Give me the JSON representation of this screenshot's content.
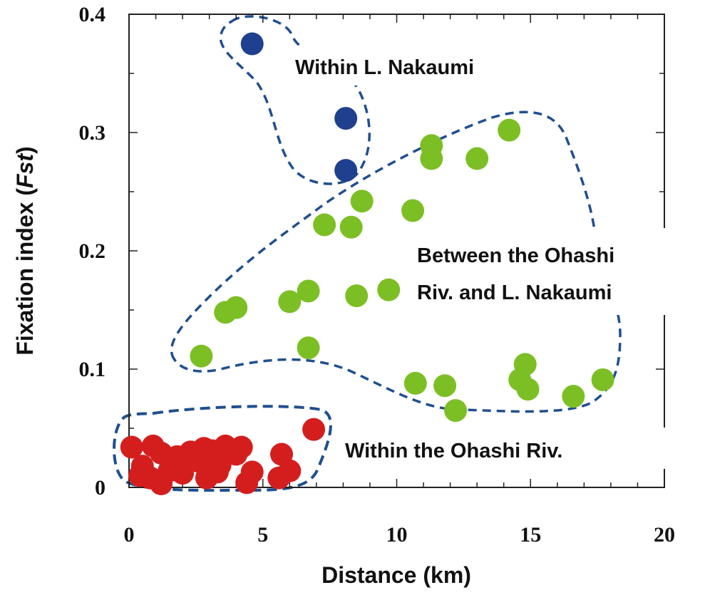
{
  "chart_data": {
    "type": "scatter",
    "xlabel": "Distance (km)",
    "ylabel_main": "Fixation index (",
    "ylabel_italic": "Fst",
    "ylabel_end": ")",
    "xlim": [
      0,
      20
    ],
    "ylim": [
      0,
      0.4
    ],
    "x_ticks": [
      "0",
      "5",
      "10",
      "15",
      "20"
    ],
    "y_ticks": [
      "0",
      "0.1",
      "0.2",
      "0.3",
      "0.4"
    ],
    "grid": false,
    "series": [
      {
        "key": "nakaumi",
        "color": "#1f3f8f",
        "points": [
          [
            4.6,
            0.375
          ],
          [
            8.1,
            0.312
          ],
          [
            8.1,
            0.268
          ]
        ]
      },
      {
        "key": "between",
        "color": "#7cbf24",
        "points": [
          [
            14.2,
            0.302
          ],
          [
            11.3,
            0.289
          ],
          [
            11.3,
            0.278
          ],
          [
            13.0,
            0.278
          ],
          [
            8.7,
            0.242
          ],
          [
            10.6,
            0.234
          ],
          [
            7.3,
            0.222
          ],
          [
            8.3,
            0.22
          ],
          [
            4.0,
            0.152
          ],
          [
            3.6,
            0.148
          ],
          [
            6.0,
            0.157
          ],
          [
            6.7,
            0.166
          ],
          [
            8.5,
            0.162
          ],
          [
            9.7,
            0.167
          ],
          [
            2.7,
            0.111
          ],
          [
            6.7,
            0.118
          ],
          [
            10.7,
            0.088
          ],
          [
            11.8,
            0.086
          ],
          [
            12.2,
            0.065
          ],
          [
            14.8,
            0.104
          ],
          [
            14.6,
            0.091
          ],
          [
            14.9,
            0.083
          ],
          [
            16.6,
            0.077
          ],
          [
            17.7,
            0.091
          ]
        ]
      },
      {
        "key": "ohashi",
        "color": "#d41e1e",
        "points": [
          [
            0.1,
            0.034
          ],
          [
            0.5,
            0.018
          ],
          [
            0.9,
            0.035
          ],
          [
            1.2,
            0.029
          ],
          [
            1.5,
            0.024
          ],
          [
            1.8,
            0.026
          ],
          [
            0.4,
            0.01
          ],
          [
            0.8,
            0.008
          ],
          [
            1.2,
            0.003
          ],
          [
            1.5,
            0.014
          ],
          [
            2.0,
            0.012
          ],
          [
            2.3,
            0.03
          ],
          [
            2.6,
            0.022
          ],
          [
            2.8,
            0.033
          ],
          [
            3.1,
            0.031
          ],
          [
            2.9,
            0.008
          ],
          [
            3.4,
            0.019
          ],
          [
            3.6,
            0.035
          ],
          [
            4.0,
            0.028
          ],
          [
            4.2,
            0.034
          ],
          [
            4.4,
            0.004
          ],
          [
            4.6,
            0.013
          ],
          [
            5.7,
            0.028
          ],
          [
            5.6,
            0.008
          ],
          [
            6.0,
            0.014
          ],
          [
            6.9,
            0.049
          ],
          [
            3.3,
            0.013
          ]
        ]
      }
    ],
    "annotations": {
      "nakaumi": "Within L. Nakaumi",
      "between_line1": "Between the Ohashi",
      "between_line2": "Riv. and L. Nakaumi",
      "ohashi": "Within the Ohashi Riv."
    },
    "outline_color": "#1f4f8f",
    "ohashi_outline_color": "#1f4f8f"
  }
}
